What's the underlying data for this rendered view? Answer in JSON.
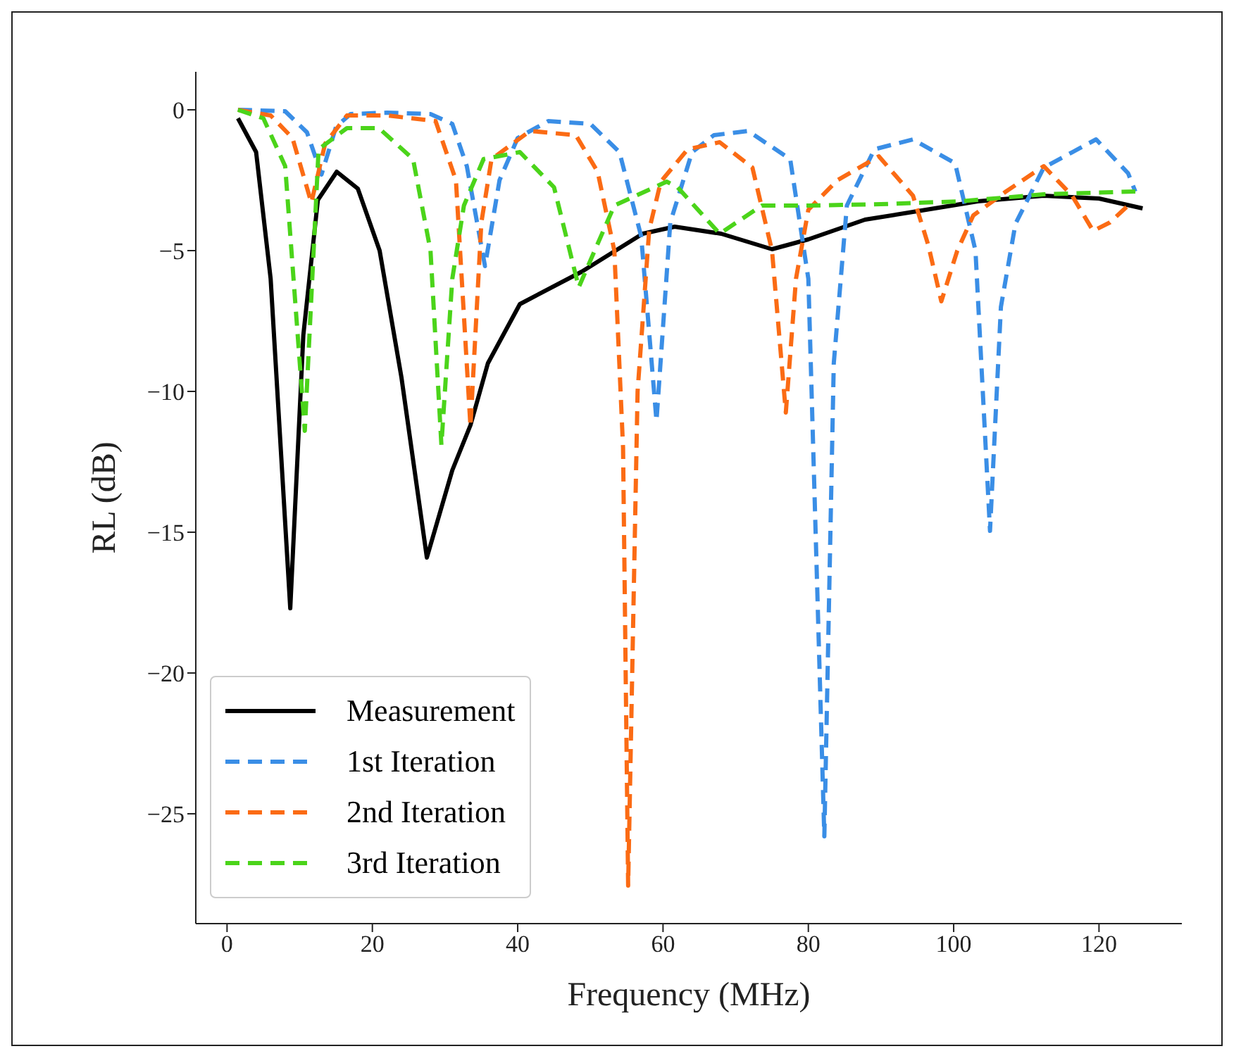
{
  "chart_data": {
    "type": "line",
    "xlabel": "Frequency (MHz)",
    "ylabel": "RL (dB)",
    "xlim": [
      -4.3,
      131.4
    ],
    "ylim": [
      -28.9,
      1.35
    ],
    "xticks": [
      0,
      20,
      40,
      60,
      80,
      100,
      120
    ],
    "yticks": [
      -25,
      -20,
      -15,
      -10,
      -5,
      0
    ],
    "grid": false,
    "legend": "bottom left",
    "marker": "none",
    "series": [
      {
        "name": "Measurement",
        "color": "#000000",
        "line_style": "solid",
        "x": [
          1.5,
          4,
          6,
          8.7,
          10.5,
          12.5,
          15.1,
          18,
          21,
          24,
          27.5,
          31,
          33.5,
          35.9,
          40.3,
          48.8,
          57.2,
          61.6,
          68,
          75,
          80,
          87.8,
          95,
          103.3,
          112.4,
          120,
          126
        ],
        "values": [
          -0.3,
          -1.5,
          -6,
          -17.7,
          -8,
          -3.2,
          -2.2,
          -2.8,
          -5,
          -9.5,
          -15.9,
          -12.8,
          -11.2,
          -9,
          -6.9,
          -5.75,
          -4.4,
          -4.15,
          -4.4,
          -4.95,
          -4.6,
          -3.9,
          -3.6,
          -3.25,
          -3.05,
          -3.15,
          -3.5
        ]
      },
      {
        "name": "1st Iteration",
        "color": "#3a8ee6",
        "line_style": "dashed",
        "x": [
          1.5,
          8,
          11,
          13,
          15,
          17,
          22,
          28,
          31,
          33,
          35.5,
          37.5,
          40,
          44.2,
          50,
          54,
          57,
          59.1,
          61,
          64,
          67,
          71.7,
          77.5,
          80,
          82.2,
          83.5,
          85.3,
          89.1,
          94.4,
          100.2,
          103,
          105,
          106.5,
          108.5,
          112.4,
          119.6,
          124,
          125
        ],
        "values": [
          0,
          -0.05,
          -0.8,
          -2.3,
          -0.6,
          -0.15,
          -0.1,
          -0.15,
          -0.5,
          -2,
          -5.55,
          -2.5,
          -1,
          -0.4,
          -0.5,
          -1.5,
          -4.5,
          -11.05,
          -4,
          -1.5,
          -0.9,
          -0.75,
          -1.75,
          -6,
          -25.8,
          -9,
          -3.4,
          -1.4,
          -1.05,
          -1.9,
          -5,
          -14.95,
          -7,
          -4.05,
          -2.05,
          -1.05,
          -2.25,
          -2.9
        ]
      },
      {
        "name": "2nd Iteration",
        "color": "#fb6b14",
        "line_style": "dashed",
        "x": [
          1.5,
          6,
          9,
          11.6,
          13.5,
          16.5,
          22,
          28.7,
          31.5,
          33.5,
          35,
          36.4,
          41.7,
          48,
          51,
          53.3,
          54.5,
          55.2,
          56.5,
          58.1,
          59.7,
          63.4,
          67.8,
          72.3,
          75,
          76.9,
          78.3,
          80,
          84,
          89.7,
          94.4,
          96.5,
          98.3,
          100.5,
          102.7,
          107.2,
          112.4,
          116.3,
          119.2,
          121.5,
          124
        ],
        "values": [
          0,
          -0.2,
          -1,
          -3.3,
          -1.2,
          -0.2,
          -0.2,
          -0.4,
          -2.5,
          -11.25,
          -4,
          -1.75,
          -0.75,
          -0.9,
          -2.2,
          -5,
          -12,
          -27.55,
          -10,
          -4.25,
          -2.55,
          -1.4,
          -1.15,
          -2.05,
          -5,
          -10.75,
          -6,
          -3.55,
          -2.5,
          -1.65,
          -3.05,
          -4.8,
          -6.8,
          -5,
          -3.75,
          -2.9,
          -2,
          -3.05,
          -4.3,
          -4,
          -3.4
        ]
      },
      {
        "name": "3rd Iteration",
        "color": "#4bd41a",
        "line_style": "dashed",
        "x": [
          1.5,
          5,
          8,
          10.7,
          12.6,
          16.5,
          20.9,
          25.6,
          28,
          29.5,
          31,
          32.6,
          35.3,
          40.3,
          45,
          48.4,
          53.3,
          60.5,
          62,
          67.8,
          73.6,
          80,
          90,
          100.8,
          112.4,
          125
        ],
        "values": [
          0,
          -0.3,
          -2,
          -11.4,
          -1.4,
          -0.65,
          -0.65,
          -1.75,
          -5,
          -11.9,
          -6,
          -3.4,
          -1.75,
          -1.5,
          -2.75,
          -6.3,
          -3.4,
          -2.55,
          -2.75,
          -4.4,
          -3.4,
          -3.4,
          -3.35,
          -3.25,
          -3,
          -2.9
        ]
      }
    ]
  }
}
